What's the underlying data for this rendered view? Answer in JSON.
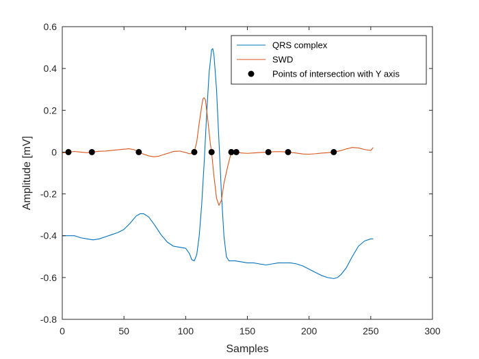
{
  "chart_data": {
    "type": "line",
    "xlabel": "Samples",
    "ylabel": "Amplitude [mV]",
    "xlim": [
      0,
      300
    ],
    "ylim": [
      -0.8,
      0.6
    ],
    "xticks": [
      "0",
      "50",
      "100",
      "150",
      "200",
      "250",
      "300"
    ],
    "yticks": [
      "-0.8",
      "-0.6",
      "-0.4",
      "-0.2",
      "0",
      "0.2",
      "0.4",
      "0.6"
    ],
    "grid": false,
    "legend_position": "top-right",
    "series": [
      {
        "name": "QRS complex",
        "kind": "line",
        "color": "#0072BD",
        "points": [
          [
            0,
            -0.4
          ],
          [
            5,
            -0.4
          ],
          [
            10,
            -0.4
          ],
          [
            15,
            -0.41
          ],
          [
            20,
            -0.415
          ],
          [
            25,
            -0.42
          ],
          [
            30,
            -0.415
          ],
          [
            35,
            -0.405
          ],
          [
            40,
            -0.395
          ],
          [
            45,
            -0.385
          ],
          [
            50,
            -0.37
          ],
          [
            55,
            -0.34
          ],
          [
            60,
            -0.305
          ],
          [
            63,
            -0.295
          ],
          [
            66,
            -0.295
          ],
          [
            70,
            -0.31
          ],
          [
            75,
            -0.35
          ],
          [
            80,
            -0.395
          ],
          [
            85,
            -0.43
          ],
          [
            90,
            -0.45
          ],
          [
            95,
            -0.455
          ],
          [
            100,
            -0.46
          ],
          [
            103,
            -0.485
          ],
          [
            105,
            -0.515
          ],
          [
            107,
            -0.52
          ],
          [
            109,
            -0.49
          ],
          [
            111,
            -0.4
          ],
          [
            113,
            -0.25
          ],
          [
            115,
            -0.05
          ],
          [
            117,
            0.18
          ],
          [
            119,
            0.38
          ],
          [
            121,
            0.49
          ],
          [
            122,
            0.495
          ],
          [
            123,
            0.46
          ],
          [
            125,
            0.3
          ],
          [
            127,
            0.05
          ],
          [
            129,
            -0.2
          ],
          [
            131,
            -0.4
          ],
          [
            133,
            -0.5
          ],
          [
            135,
            -0.52
          ],
          [
            140,
            -0.52
          ],
          [
            145,
            -0.525
          ],
          [
            150,
            -0.53
          ],
          [
            155,
            -0.53
          ],
          [
            160,
            -0.535
          ],
          [
            165,
            -0.54
          ],
          [
            170,
            -0.535
          ],
          [
            175,
            -0.53
          ],
          [
            180,
            -0.53
          ],
          [
            185,
            -0.53
          ],
          [
            190,
            -0.535
          ],
          [
            195,
            -0.545
          ],
          [
            200,
            -0.56
          ],
          [
            205,
            -0.575
          ],
          [
            210,
            -0.59
          ],
          [
            215,
            -0.6
          ],
          [
            220,
            -0.605
          ],
          [
            223,
            -0.6
          ],
          [
            226,
            -0.585
          ],
          [
            230,
            -0.555
          ],
          [
            235,
            -0.5
          ],
          [
            240,
            -0.45
          ],
          [
            245,
            -0.425
          ],
          [
            250,
            -0.415
          ],
          [
            252,
            -0.415
          ]
        ]
      },
      {
        "name": "SWD",
        "kind": "line",
        "color": "#D95319",
        "points": [
          [
            0,
            -0.004
          ],
          [
            5,
            0
          ],
          [
            10,
            0.003
          ],
          [
            15,
            0.0
          ],
          [
            20,
            -0.003
          ],
          [
            24,
            0
          ],
          [
            30,
            0.004
          ],
          [
            35,
            0.005
          ],
          [
            40,
            0.008
          ],
          [
            45,
            0.011
          ],
          [
            50,
            0.014
          ],
          [
            54,
            0.016
          ],
          [
            58,
            0.012
          ],
          [
            62,
            0
          ],
          [
            66,
            -0.01
          ],
          [
            70,
            -0.018
          ],
          [
            74,
            -0.022
          ],
          [
            78,
            -0.02
          ],
          [
            82,
            -0.012
          ],
          [
            86,
            -0.005
          ],
          [
            90,
            0.003
          ],
          [
            95,
            0.005
          ],
          [
            100,
            -0.002
          ],
          [
            103,
            -0.008
          ],
          [
            105,
            -0.005
          ],
          [
            107,
            0
          ],
          [
            109,
            0.05
          ],
          [
            111,
            0.14
          ],
          [
            113,
            0.22
          ],
          [
            114,
            0.255
          ],
          [
            115,
            0.26
          ],
          [
            116,
            0.25
          ],
          [
            118,
            0.15
          ],
          [
            120,
            0.04
          ],
          [
            121,
            0
          ],
          [
            123,
            -0.12
          ],
          [
            125,
            -0.22
          ],
          [
            127,
            -0.255
          ],
          [
            129,
            -0.23
          ],
          [
            131,
            -0.15
          ],
          [
            134,
            -0.07
          ],
          [
            137,
            0
          ],
          [
            139,
            0.005
          ],
          [
            141,
            0
          ],
          [
            145,
            -0.004
          ],
          [
            150,
            -0.006
          ],
          [
            155,
            -0.004
          ],
          [
            160,
            -0.002
          ],
          [
            167,
            0
          ],
          [
            172,
            0.002
          ],
          [
            178,
            0.002
          ],
          [
            183,
            0
          ],
          [
            190,
            -0.005
          ],
          [
            195,
            -0.009
          ],
          [
            200,
            -0.01
          ],
          [
            205,
            -0.008
          ],
          [
            210,
            -0.005
          ],
          [
            215,
            -0.003
          ],
          [
            220,
            0
          ],
          [
            225,
            0.006
          ],
          [
            230,
            0.015
          ],
          [
            235,
            0.022
          ],
          [
            240,
            0.02
          ],
          [
            245,
            0.012
          ],
          [
            250,
            0.008
          ],
          [
            252,
            0.022
          ]
        ]
      },
      {
        "name": "Points of intersection with Y axis",
        "kind": "scatter",
        "color": "#000000",
        "points": [
          [
            5,
            0
          ],
          [
            24,
            0
          ],
          [
            62,
            0
          ],
          [
            107,
            0
          ],
          [
            121,
            0
          ],
          [
            137,
            0
          ],
          [
            141,
            0
          ],
          [
            167,
            0
          ],
          [
            183,
            0
          ],
          [
            220,
            0
          ]
        ]
      }
    ]
  }
}
